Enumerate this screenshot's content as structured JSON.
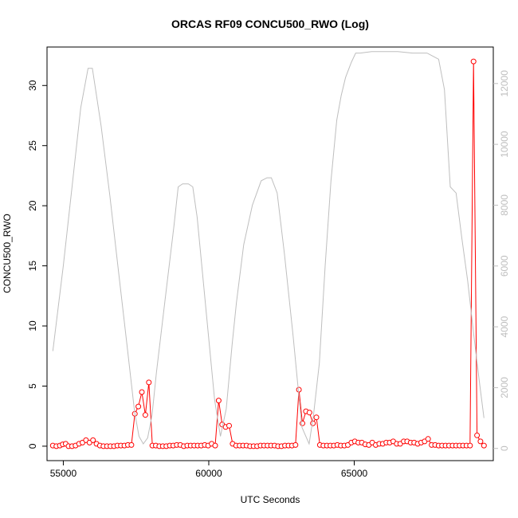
{
  "chart_data": {
    "type": "line",
    "title": "ORCAS RF09 CONCU500_RWO (Log)",
    "xlabel": "UTC Seconds",
    "ylabel": "CONCU500_RWO",
    "xlim": [
      54440,
      69780
    ],
    "ylim": [
      -1.2,
      33.2
    ],
    "ylim_right": [
      -400,
      13200
    ],
    "x_ticks": [
      55000,
      60000,
      65000
    ],
    "y_ticks": [
      0,
      5,
      10,
      15,
      20,
      25,
      30
    ],
    "y_ticks_right": [
      0,
      2000,
      4000,
      6000,
      8000,
      10000,
      12000
    ],
    "colors": {
      "primary": "#ff0000",
      "secondary": "#bebebe",
      "axes": "#000000"
    },
    "series": [
      {
        "axis": "left",
        "style": "line+points",
        "color": "#ff0000",
        "x": [
          54640,
          54760,
          54880,
          54980,
          55080,
          55180,
          55300,
          55420,
          55540,
          55660,
          55780,
          55900,
          56020,
          56140,
          56260,
          56380,
          56500,
          56620,
          56740,
          56860,
          56980,
          57100,
          57220,
          57340,
          57460,
          57580,
          57700,
          57820,
          57940,
          58060,
          58180,
          58300,
          58420,
          58540,
          58660,
          58780,
          58900,
          59020,
          59140,
          59260,
          59380,
          59500,
          59620,
          59740,
          59860,
          59980,
          60100,
          60220,
          60340,
          60460,
          60580,
          60700,
          60820,
          60940,
          61060,
          61180,
          61300,
          61420,
          61540,
          61660,
          61780,
          61900,
          62020,
          62140,
          62260,
          62380,
          62500,
          62620,
          62740,
          62860,
          62980,
          63100,
          63220,
          63340,
          63460,
          63580,
          63700,
          63820,
          63940,
          64060,
          64180,
          64300,
          64420,
          64540,
          64660,
          64780,
          64900,
          65020,
          65140,
          65260,
          65380,
          65500,
          65620,
          65740,
          65860,
          65980,
          66100,
          66220,
          66340,
          66460,
          66580,
          66700,
          66820,
          66940,
          67060,
          67180,
          67300,
          67420,
          67540,
          67660,
          67780,
          67900,
          68020,
          68140,
          68260,
          68380,
          68500,
          68620,
          68740,
          68860,
          68980,
          69100,
          69220,
          69340,
          69460
        ],
        "y": [
          0.05,
          0.0,
          0.05,
          0.15,
          0.2,
          0.0,
          0.0,
          0.05,
          0.2,
          0.3,
          0.5,
          0.3,
          0.5,
          0.2,
          0.05,
          0.0,
          0.0,
          0.0,
          0.0,
          0.05,
          0.05,
          0.05,
          0.1,
          0.1,
          2.7,
          3.3,
          4.5,
          2.6,
          5.3,
          0.05,
          0.05,
          0.0,
          0.0,
          0.0,
          0.05,
          0.05,
          0.1,
          0.1,
          0.0,
          0.05,
          0.05,
          0.05,
          0.05,
          0.05,
          0.1,
          0.05,
          0.2,
          0.05,
          3.8,
          1.8,
          1.6,
          1.7,
          0.2,
          0.05,
          0.05,
          0.05,
          0.05,
          0.0,
          0.0,
          0.0,
          0.05,
          0.05,
          0.05,
          0.05,
          0.05,
          0.0,
          0.0,
          0.05,
          0.05,
          0.05,
          0.1,
          4.7,
          1.9,
          2.9,
          2.8,
          1.9,
          2.4,
          0.1,
          0.05,
          0.05,
          0.05,
          0.05,
          0.1,
          0.05,
          0.05,
          0.1,
          0.3,
          0.4,
          0.3,
          0.3,
          0.15,
          0.1,
          0.3,
          0.1,
          0.2,
          0.2,
          0.3,
          0.3,
          0.4,
          0.2,
          0.2,
          0.4,
          0.4,
          0.3,
          0.3,
          0.2,
          0.3,
          0.4,
          0.6,
          0.1,
          0.1,
          0.05,
          0.05,
          0.05,
          0.05,
          0.05,
          0.05,
          0.05,
          0.05,
          0.05,
          0.05,
          32.0,
          0.9,
          0.4,
          0.05
        ]
      },
      {
        "axis": "right",
        "style": "line",
        "color": "#bebebe",
        "x": [
          54640,
          55000,
          55300,
          55600,
          55850,
          56000,
          56300,
          56600,
          56900,
          57200,
          57450,
          57600,
          57750,
          57900,
          58050,
          58200,
          58500,
          58800,
          58950,
          59100,
          59300,
          59450,
          59600,
          59800,
          60000,
          60200,
          60400,
          60600,
          60800,
          60950,
          61200,
          61500,
          61800,
          62000,
          62150,
          62350,
          62600,
          62900,
          63200,
          63450,
          63600,
          63800,
          64000,
          64200,
          64400,
          64550,
          64700,
          64900,
          65050,
          65200,
          65600,
          66000,
          66500,
          67000,
          67500,
          67700,
          67900,
          68100,
          68300,
          68500,
          68700,
          68900,
          69100,
          69300,
          69460
        ],
        "y": [
          3200,
          6000,
          8600,
          11200,
          12500,
          12500,
          10600,
          8300,
          5800,
          3300,
          1200,
          400,
          150,
          350,
          1100,
          2500,
          4900,
          7300,
          8600,
          8700,
          8700,
          8600,
          7600,
          5600,
          3600,
          1600,
          400,
          1300,
          3400,
          4800,
          6700,
          8000,
          8800,
          8900,
          8900,
          8400,
          6400,
          3700,
          700,
          150,
          1100,
          2800,
          6000,
          8800,
          10800,
          11600,
          12200,
          12700,
          13000,
          13000,
          13050,
          13050,
          13050,
          13000,
          13000,
          12900,
          12800,
          11800,
          8600,
          8400,
          6900,
          5500,
          3800,
          2200,
          1000
        ]
      }
    ]
  }
}
